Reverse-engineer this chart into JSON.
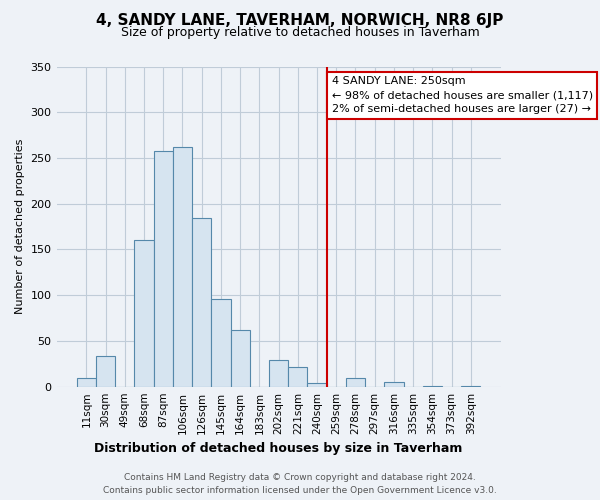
{
  "title": "4, SANDY LANE, TAVERHAM, NORWICH, NR8 6JP",
  "subtitle": "Size of property relative to detached houses in Taverham",
  "xlabel": "Distribution of detached houses by size in Taverham",
  "ylabel": "Number of detached properties",
  "bar_labels": [
    "11sqm",
    "30sqm",
    "49sqm",
    "68sqm",
    "87sqm",
    "106sqm",
    "126sqm",
    "145sqm",
    "164sqm",
    "183sqm",
    "202sqm",
    "221sqm",
    "240sqm",
    "259sqm",
    "278sqm",
    "297sqm",
    "316sqm",
    "335sqm",
    "354sqm",
    "373sqm",
    "392sqm"
  ],
  "bar_values": [
    9,
    34,
    0,
    160,
    258,
    262,
    184,
    96,
    62,
    0,
    29,
    21,
    4,
    0,
    10,
    0,
    5,
    0,
    1,
    0,
    1
  ],
  "bar_color": "#d6e4f0",
  "bar_edge_color": "#5588aa",
  "ylim": [
    0,
    350
  ],
  "yticks": [
    0,
    50,
    100,
    150,
    200,
    250,
    300,
    350
  ],
  "annotation_title": "4 SANDY LANE: 250sqm",
  "annotation_line1": "← 98% of detached houses are smaller (1,117)",
  "annotation_line2": "2% of semi-detached houses are larger (27) →",
  "annotation_box_color": "#ffffff",
  "annotation_border_color": "#cc0000",
  "line_color": "#cc0000",
  "footer_line1": "Contains HM Land Registry data © Crown copyright and database right 2024.",
  "footer_line2": "Contains public sector information licensed under the Open Government Licence v3.0.",
  "background_color": "#eef2f7",
  "grid_color": "#c0ccd8",
  "title_fontsize": 11,
  "subtitle_fontsize": 9,
  "xlabel_fontsize": 9,
  "ylabel_fontsize": 8,
  "tick_fontsize": 7.5,
  "footer_fontsize": 6.5,
  "annotation_fontsize": 8,
  "red_line_bin_index": 13
}
